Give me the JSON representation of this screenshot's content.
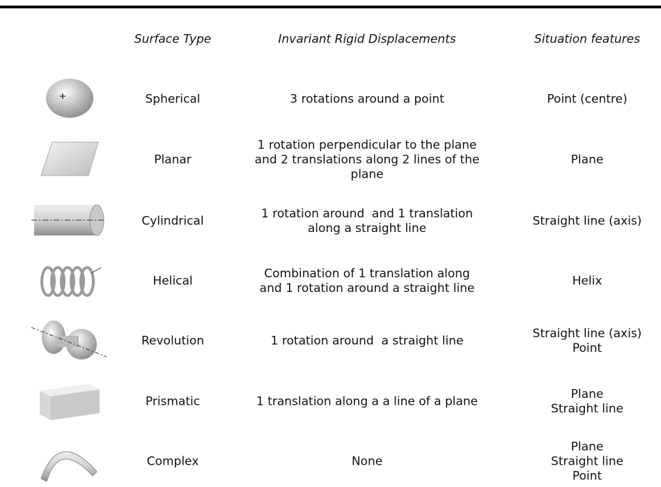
{
  "table": {
    "header": [
      "Surface Type",
      "Invariant Rigid Displacements",
      "Situation features"
    ],
    "rows": [
      {
        "type": "Spherical",
        "displacements": [
          "3 rotations around a point"
        ],
        "features": [
          "Point (centre)"
        ]
      },
      {
        "type": "Planar",
        "displacements": [
          "1 rotation perpendicular to the plane",
          "and 2 translations along 2 lines of the",
          "plane"
        ],
        "features": [
          "Plane"
        ]
      },
      {
        "type": "Cylindrical",
        "displacements": [
          "1 rotation around  and 1 translation",
          "along a straight line"
        ],
        "features": [
          "Straight line (axis)"
        ]
      },
      {
        "type": "Helical",
        "displacements": [
          "Combination of 1 translation along",
          "and 1 rotation around a straight line"
        ],
        "features": [
          "Helix"
        ]
      },
      {
        "type": "Revolution",
        "displacements": [
          "1 rotation around  a straight line"
        ],
        "features": [
          "Straight line (axis)",
          "Point"
        ]
      },
      {
        "type": "Prismatic",
        "displacements": [
          "1 translation along a a line of a plane"
        ],
        "features": [
          "Plane",
          "Straight line"
        ]
      },
      {
        "type": "Complex",
        "displacements": [
          "None"
        ],
        "features": [
          "Plane",
          "Straight line",
          "Point"
        ]
      }
    ]
  }
}
